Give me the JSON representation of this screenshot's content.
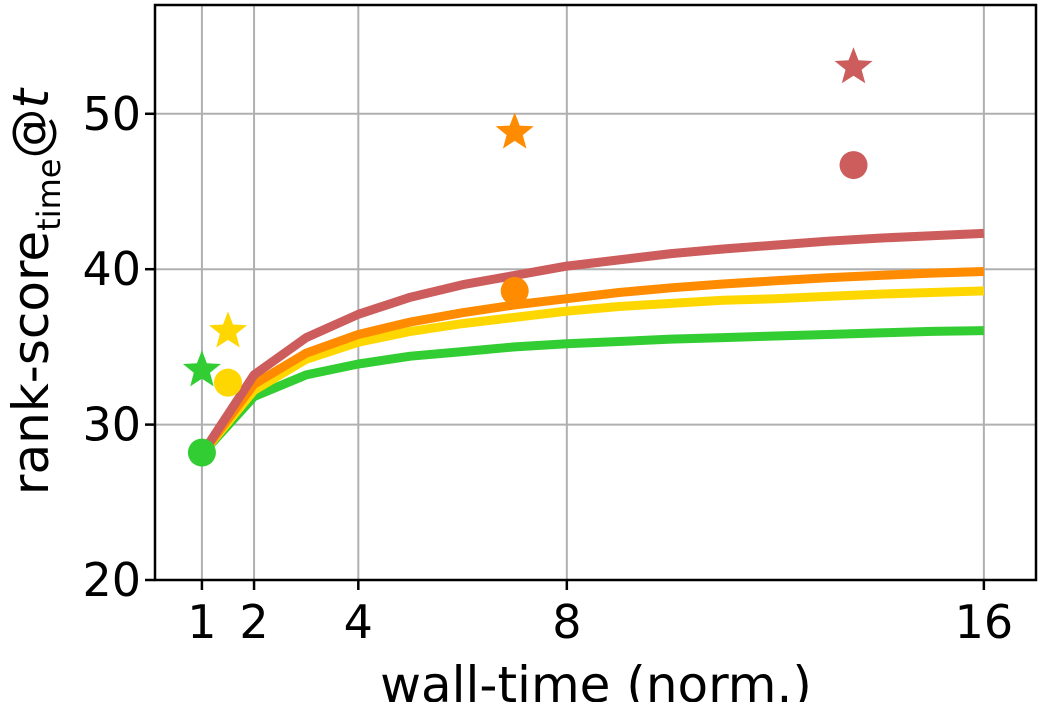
{
  "chart_data": {
    "type": "line",
    "xlabel": "wall-time (norm.)",
    "ylabel": {
      "main": "rank-score",
      "subscript": "time",
      "suffix": "@",
      "italic": "t"
    },
    "xlim": [
      0.1,
      17
    ],
    "ylim": [
      20,
      57
    ],
    "xticks": [
      1,
      2,
      4,
      8,
      16
    ],
    "yticks": [
      20,
      30,
      40,
      50
    ],
    "grid": true,
    "series": [
      {
        "color": "#32cd32",
        "x": [
          1,
          2,
          3,
          4,
          5,
          6,
          7,
          8,
          9,
          10,
          11,
          12,
          13,
          14,
          15,
          16
        ],
        "values": [
          28.1,
          31.8,
          33.2,
          33.9,
          34.4,
          34.7,
          35.0,
          35.2,
          35.35,
          35.5,
          35.6,
          35.7,
          35.8,
          35.9,
          36.0,
          36.05
        ]
      },
      {
        "color": "#ffd700",
        "x": [
          1,
          2,
          3,
          4,
          5,
          6,
          7,
          8,
          9,
          10,
          11,
          12,
          13,
          14,
          15,
          16
        ],
        "values": [
          28.1,
          32.2,
          34.2,
          35.3,
          36.0,
          36.5,
          36.9,
          37.3,
          37.6,
          37.8,
          38.0,
          38.1,
          38.25,
          38.4,
          38.5,
          38.6
        ]
      },
      {
        "color": "#ff8c00",
        "x": [
          1,
          2,
          3,
          4,
          5,
          6,
          7,
          8,
          9,
          10,
          11,
          12,
          13,
          14,
          15,
          16
        ],
        "values": [
          28.1,
          32.6,
          34.6,
          35.8,
          36.6,
          37.2,
          37.7,
          38.1,
          38.5,
          38.8,
          39.05,
          39.25,
          39.45,
          39.6,
          39.75,
          39.85
        ]
      },
      {
        "color": "#cd5c5c",
        "x": [
          1,
          2,
          3,
          4,
          5,
          6,
          7,
          8,
          9,
          10,
          11,
          12,
          13,
          14,
          15,
          16
        ],
        "values": [
          28.1,
          33.2,
          35.6,
          37.1,
          38.2,
          39.0,
          39.6,
          40.2,
          40.6,
          41.0,
          41.3,
          41.55,
          41.8,
          42.0,
          42.15,
          42.3
        ]
      }
    ],
    "markers": [
      {
        "shape": "circle",
        "color": "#32cd32",
        "x": 1.0,
        "y": 28.2
      },
      {
        "shape": "star",
        "color": "#32cd32",
        "x": 1.0,
        "y": 33.5
      },
      {
        "shape": "circle",
        "color": "#ffd700",
        "x": 1.5,
        "y": 32.7
      },
      {
        "shape": "star",
        "color": "#ffd700",
        "x": 1.5,
        "y": 36.0
      },
      {
        "shape": "circle",
        "color": "#ff8c00",
        "x": 7.0,
        "y": 38.6
      },
      {
        "shape": "star",
        "color": "#ff8c00",
        "x": 7.0,
        "y": 48.8
      },
      {
        "shape": "circle",
        "color": "#cd5c5c",
        "x": 13.5,
        "y": 46.7
      },
      {
        "shape": "star",
        "color": "#cd5c5c",
        "x": 13.5,
        "y": 53.0
      }
    ]
  }
}
